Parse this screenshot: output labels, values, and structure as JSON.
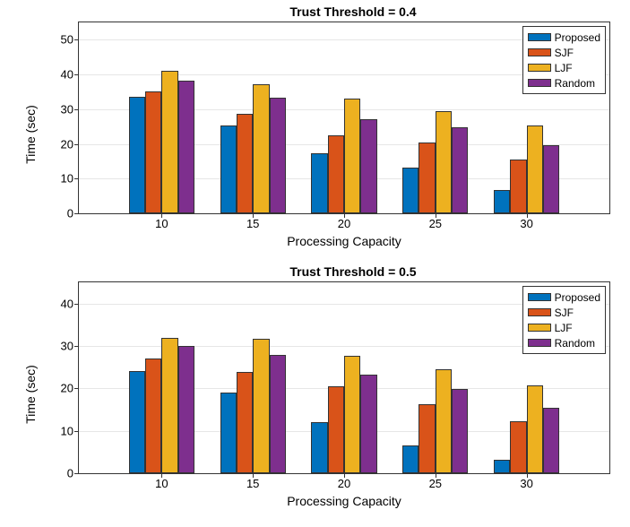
{
  "charts": [
    {
      "title": "Trust Threshold = 0.4",
      "ylabel": "Time (sec)",
      "xlabel": "Processing Capacity",
      "ylim": [
        0,
        55
      ],
      "yticks": [
        0,
        10,
        20,
        30,
        40,
        50
      ],
      "categories": [
        10,
        15,
        20,
        25,
        30
      ],
      "series": [
        {
          "name": "Proposed",
          "color": "#0072bd",
          "values": [
            33.5,
            25.2,
            17.3,
            13.2,
            6.8
          ]
        },
        {
          "name": "SJF",
          "color": "#d95319",
          "values": [
            35.0,
            28.7,
            22.5,
            20.3,
            15.5
          ]
        },
        {
          "name": "LJF",
          "color": "#edb120",
          "values": [
            41.0,
            37.2,
            33.1,
            29.5,
            25.3
          ]
        },
        {
          "name": "Random",
          "color": "#7e2f8e",
          "values": [
            38.2,
            33.3,
            27.0,
            24.7,
            19.7
          ]
        }
      ]
    },
    {
      "title": "Trust Threshold = 0.5",
      "ylabel": "Time (sec)",
      "xlabel": "Processing Capacity",
      "ylim": [
        0,
        45
      ],
      "yticks": [
        0,
        10,
        20,
        30,
        40
      ],
      "categories": [
        10,
        15,
        20,
        25,
        30
      ],
      "series": [
        {
          "name": "Proposed",
          "color": "#0072bd",
          "values": [
            24.0,
            19.0,
            12.0,
            6.6,
            3.2
          ]
        },
        {
          "name": "SJF",
          "color": "#d95319",
          "values": [
            27.1,
            23.8,
            20.5,
            16.2,
            12.3
          ]
        },
        {
          "name": "LJF",
          "color": "#edb120",
          "values": [
            32.0,
            31.6,
            27.6,
            24.5,
            20.7
          ]
        },
        {
          "name": "Random",
          "color": "#7e2f8e",
          "values": [
            30.0,
            27.8,
            23.2,
            19.8,
            15.4
          ]
        }
      ]
    }
  ],
  "bar_width_ratio": 0.18,
  "group_gap_ratio": 0.05,
  "plot_x_padding": 0.07,
  "title_fontsize": 14,
  "label_fontsize": 14,
  "tick_fontsize": 13,
  "legend_fontsize": 12,
  "grid_color": "#e6e6e6",
  "border_color": "#333333"
}
